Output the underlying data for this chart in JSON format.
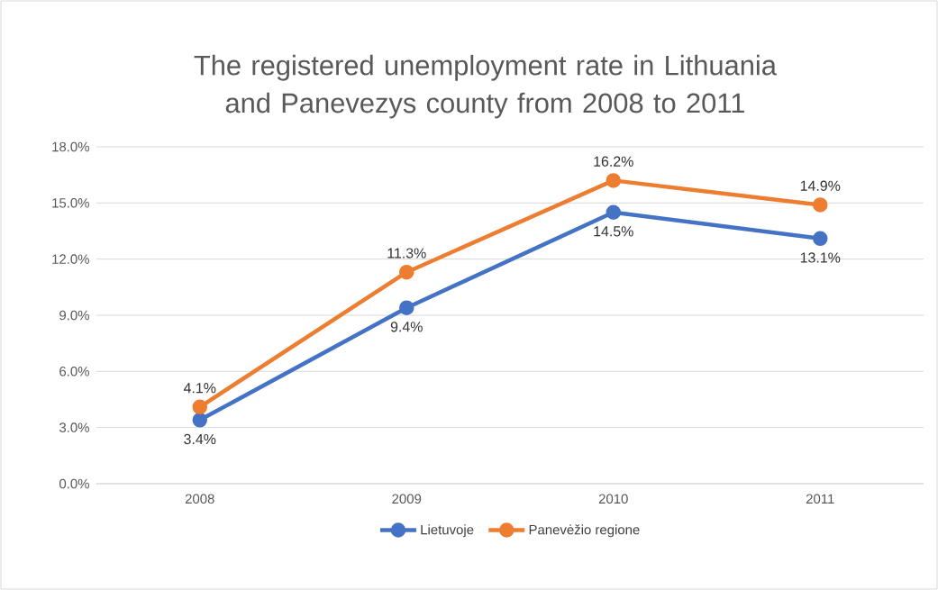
{
  "chart_data": {
    "type": "line",
    "title": "The registered unemployment rate in Lithuania and Panevezys county from 2008 to 2011",
    "categories": [
      "2008",
      "2009",
      "2010",
      "2011"
    ],
    "series": [
      {
        "name": "Lietuvoje",
        "color": "#4472c4",
        "values": [
          3.4,
          9.4,
          14.5,
          13.1
        ],
        "value_labels": [
          "3.4%",
          "9.4%",
          "14.5%",
          "13.1%"
        ]
      },
      {
        "name": "Panevėžio regione",
        "color": "#ed7d31",
        "values": [
          4.1,
          11.3,
          16.2,
          14.9
        ],
        "value_labels": [
          "4.1%",
          "11.3%",
          "16.2%",
          "14.9%"
        ]
      }
    ],
    "ylim": [
      0,
      18
    ],
    "yticks": [
      {
        "value": 0,
        "label": "0.0%"
      },
      {
        "value": 3,
        "label": "3.0%"
      },
      {
        "value": 6,
        "label": "6.0%"
      },
      {
        "value": 9,
        "label": "9.0%"
      },
      {
        "value": 12,
        "label": "12.0%"
      },
      {
        "value": 15,
        "label": "15.0%"
      },
      {
        "value": 18,
        "label": "18.0%"
      }
    ],
    "grid": "y",
    "legend": "bottom",
    "marker": "circle",
    "line_style": "solid"
  }
}
